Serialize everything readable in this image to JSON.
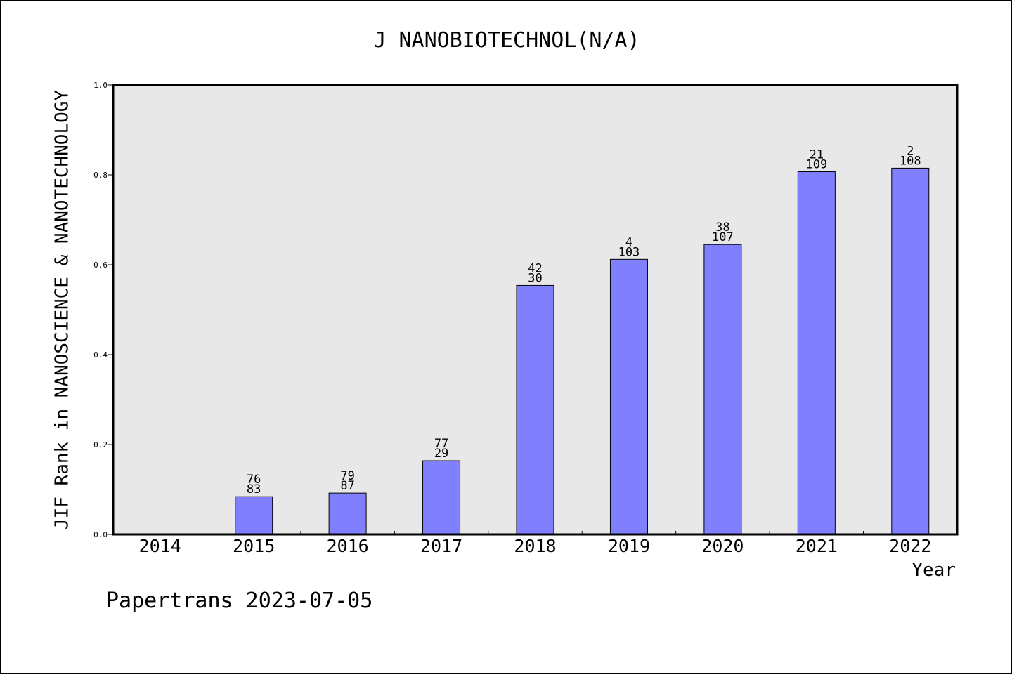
{
  "chart_data": {
    "type": "bar",
    "title": "J NANOBIOTECHNOL(N/A)",
    "xlabel": "Year",
    "ylabel": "JIF Rank in NANOSCIENCE & NANOTECHNOLOGY",
    "ylim": [
      0.0,
      1.0
    ],
    "yticks": [
      "0.0",
      "0.2",
      "0.4",
      "0.6",
      "0.8",
      "1.0"
    ],
    "ytick_values": [
      0.0,
      0.2,
      0.4,
      0.6,
      0.8,
      1.0
    ],
    "grid": false,
    "legend": "none",
    "categories": [
      "2014",
      "2015",
      "2016",
      "2017",
      "2018",
      "2019",
      "2020",
      "2021",
      "2022"
    ],
    "values": [
      null,
      0.084,
      0.092,
      0.164,
      0.554,
      0.612,
      0.645,
      0.807,
      0.815
    ],
    "labels_top": [
      "",
      "76",
      "79",
      "77",
      "42",
      "4",
      "38",
      "21",
      "2"
    ],
    "labels_bottom": [
      "",
      "83",
      "87",
      "29",
      "30",
      "103",
      "107",
      "109",
      "108"
    ],
    "bar_color": "#8080ff",
    "plot_background": "#e8e8e8"
  },
  "footer": {
    "text": "Papertrans 2023-07-05"
  }
}
